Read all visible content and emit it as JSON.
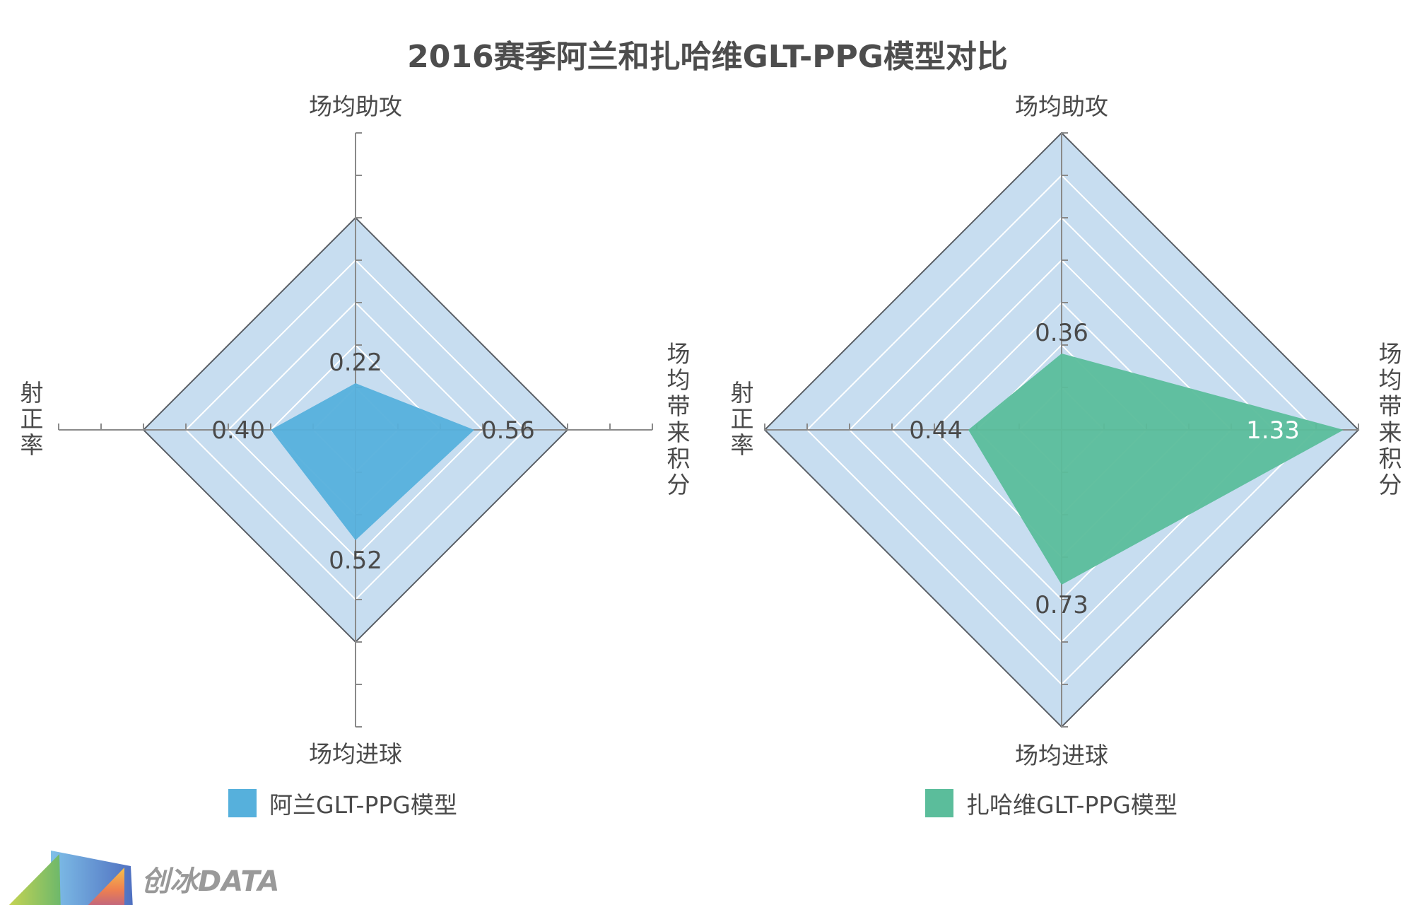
{
  "title": "2016赛季阿兰和扎哈维GLT-PPG模型对比",
  "logo_text": "创冰DATA",
  "colors": {
    "ring_fill": "#c7ddf0",
    "outer_line": "#5a5f66",
    "axis": "#8a8a8a",
    "alan": "#56b0dc",
    "zahavi": "#5bbd9b"
  },
  "chart_data": [
    {
      "type": "radar",
      "axes": [
        "场均助攻",
        "场均带来积分",
        "场均进球",
        "射正率"
      ],
      "series": [
        {
          "name": "阿兰GLT-PPG模型",
          "values": [
            0.22,
            0.56,
            0.52,
            0.4
          ],
          "labels": [
            "0.22",
            "0.56",
            "0.52",
            "0.40"
          ]
        }
      ],
      "rlim": [
        0,
        1.0
      ],
      "axis_extent": 1.4,
      "tick_step": 0.2,
      "legend": "bottom"
    },
    {
      "type": "radar",
      "axes": [
        "场均助攻",
        "场均带来积分",
        "场均进球",
        "射正率"
      ],
      "series": [
        {
          "name": "扎哈维GLT-PPG模型",
          "values": [
            0.36,
            1.33,
            0.73,
            0.44
          ],
          "labels": [
            "0.36",
            "1.33",
            "0.73",
            "0.44"
          ]
        }
      ],
      "rlim": [
        0,
        1.4
      ],
      "axis_extent": 1.4,
      "tick_step": 0.2,
      "legend": "bottom"
    }
  ]
}
